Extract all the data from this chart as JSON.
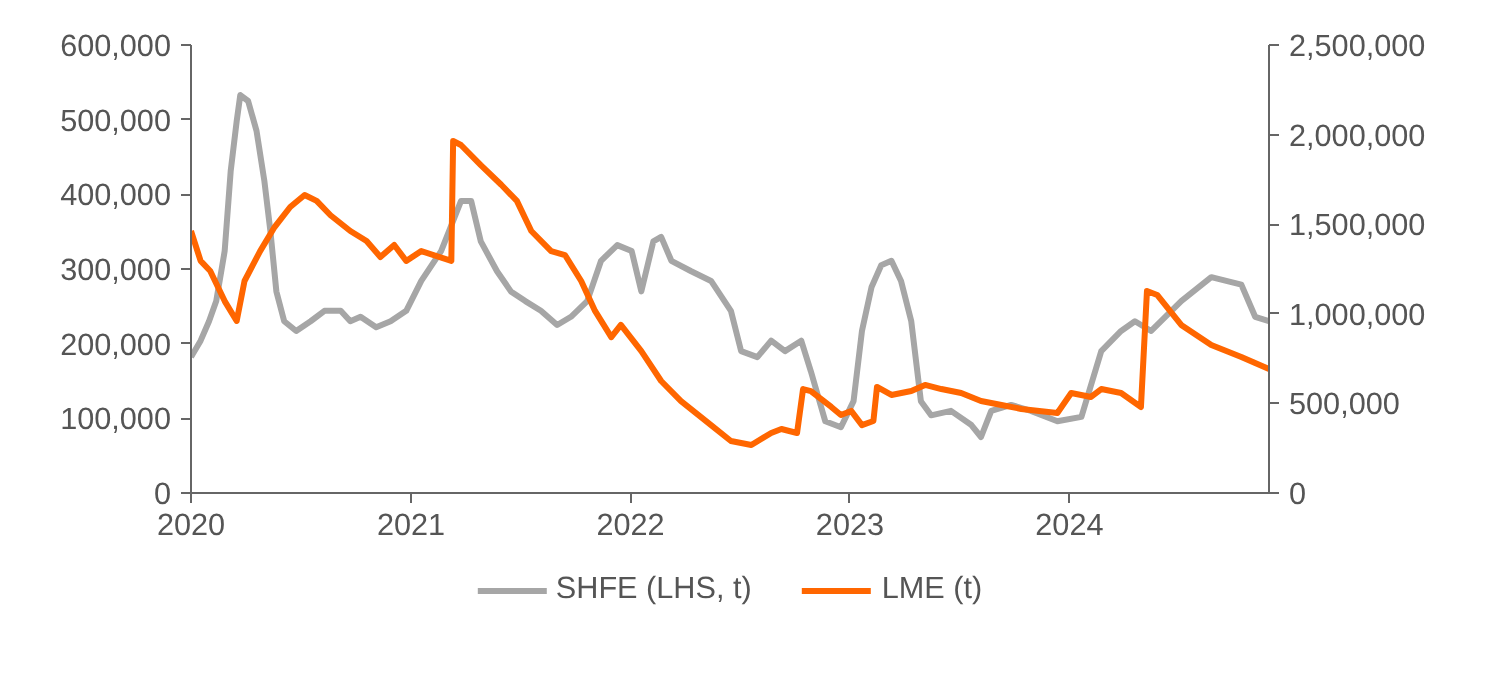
{
  "chart_data": {
    "type": "line",
    "legend": "bottom",
    "grid": false,
    "line_style": "solid",
    "xlim": [
      "2020-01-01",
      "2024-11-28"
    ],
    "xticks": [
      "2020",
      "2021",
      "2022",
      "2023",
      "2024"
    ],
    "ylim": [
      0,
      600000
    ],
    "yticks": [
      0,
      {
        "value": 100000,
        "label": "100,000"
      },
      {
        "value": 200000,
        "label": "200,000"
      },
      {
        "value": 300000,
        "label": "300,000"
      },
      {
        "value": 400000,
        "label": "400,000"
      },
      {
        "value": 500000,
        "label": "500,000"
      },
      {
        "value": 600000,
        "label": "600,000"
      }
    ],
    "y2lim": [
      0,
      2500000
    ],
    "y2ticks": [
      0,
      {
        "value": 500000,
        "label": "500,000"
      },
      {
        "value": 1000000,
        "label": "1,000,000"
      },
      {
        "value": 1500000,
        "label": "1,500,000"
      },
      {
        "value": 2000000,
        "label": "2,000,000"
      },
      {
        "value": 2500000,
        "label": "2,500,000"
      }
    ],
    "series": [
      {
        "name": "SHFE (LHS, t)",
        "color": "#a6a6a6",
        "x": [
          "2020-01-01",
          "2020-01-17",
          "2020-01-31",
          "2020-02-12",
          "2020-02-26",
          "2020-03-07",
          "2020-03-17",
          "2020-03-23",
          "2020-04-05",
          "2020-04-19",
          "2020-05-02",
          "2020-05-12",
          "2020-05-22",
          "2020-06-04",
          "2020-06-24",
          "2020-07-18",
          "2020-08-10",
          "2020-09-06",
          "2020-09-22",
          "2020-10-09",
          "2020-11-04",
          "2020-11-28",
          "2020-12-24",
          "2021-01-18",
          "2021-02-20",
          "2021-03-25",
          "2021-04-11",
          "2021-04-27",
          "2021-05-24",
          "2021-06-16",
          "2021-07-10",
          "2021-08-05",
          "2021-09-01",
          "2021-09-24",
          "2021-10-21",
          "2021-11-13",
          "2021-12-10",
          "2022-01-03",
          "2022-01-19",
          "2022-02-08",
          "2022-02-21",
          "2022-03-10",
          "2022-04-12",
          "2022-05-15",
          "2022-06-17",
          "2022-07-04",
          "2022-07-31",
          "2022-08-23",
          "2022-09-15",
          "2022-10-12",
          "2022-10-28",
          "2022-11-21",
          "2022-12-17",
          "2023-01-07",
          "2023-01-21",
          "2023-02-06",
          "2023-02-22",
          "2023-03-11",
          "2023-03-27",
          "2023-04-13",
          "2023-04-29",
          "2023-05-16",
          "2023-06-18",
          "2023-07-22",
          "2023-08-07",
          "2023-08-24",
          "2023-09-26",
          "2023-10-29",
          "2023-12-12",
          "2024-01-21",
          "2024-02-23",
          "2024-03-27",
          "2024-04-19",
          "2024-05-16",
          "2024-07-05",
          "2024-08-24",
          "2024-10-13",
          "2024-11-05",
          "2024-11-28"
        ],
        "values": [
          182000,
          204000,
          230000,
          257000,
          324000,
          431000,
          498000,
          533000,
          525000,
          485000,
          418000,
          351000,
          270000,
          230000,
          217000,
          230000,
          244000,
          244000,
          230000,
          236000,
          222000,
          230000,
          244000,
          284000,
          324000,
          391000,
          391000,
          337000,
          297000,
          270000,
          257000,
          244000,
          225000,
          236000,
          257000,
          311000,
          332000,
          324000,
          270000,
          337000,
          343000,
          311000,
          297000,
          284000,
          244000,
          190000,
          182000,
          204000,
          190000,
          204000,
          163000,
          96000,
          88000,
          123000,
          217000,
          276000,
          305000,
          311000,
          284000,
          230000,
          123000,
          104000,
          110000,
          91000,
          75000,
          110000,
          118000,
          110000,
          96000,
          102000,
          190000,
          217000,
          230000,
          217000,
          257000,
          289000,
          279000,
          236000,
          230000
        ]
      },
      {
        "name": "LME (t)",
        "color": "#ff6600",
        "axis": "y2",
        "x": [
          "2020-01-01",
          "2020-01-17",
          "2020-02-02",
          "2020-02-26",
          "2020-03-17",
          "2020-03-30",
          "2020-04-25",
          "2020-05-19",
          "2020-06-14",
          "2020-07-08",
          "2020-07-28",
          "2020-08-20",
          "2020-09-22",
          "2020-10-19",
          "2020-11-11",
          "2020-12-04",
          "2020-12-24",
          "2021-01-18",
          "2021-03-09",
          "2021-03-12",
          "2021-03-25",
          "2021-04-27",
          "2021-05-31",
          "2021-06-26",
          "2021-07-20",
          "2021-08-22",
          "2021-09-14",
          "2021-10-11",
          "2021-11-03",
          "2021-11-30",
          "2021-12-16",
          "2022-01-19",
          "2022-02-21",
          "2022-03-26",
          "2022-05-15",
          "2022-06-17",
          "2022-07-21",
          "2022-08-23",
          "2022-09-09",
          "2022-10-05",
          "2022-10-15",
          "2022-10-28",
          "2022-12-01",
          "2022-12-17",
          "2023-01-03",
          "2023-01-21",
          "2023-02-09",
          "2023-02-15",
          "2023-03-11",
          "2023-04-13",
          "2023-05-06",
          "2023-06-02",
          "2023-07-05",
          "2023-08-07",
          "2023-09-10",
          "2023-10-13",
          "2023-12-12",
          "2024-01-04",
          "2024-02-06",
          "2024-02-23",
          "2024-03-27",
          "2024-04-29",
          "2024-05-09",
          "2024-05-26",
          "2024-07-05",
          "2024-08-24",
          "2024-10-13",
          "2024-11-28"
        ],
        "values": [
          1462000,
          1295000,
          1239000,
          1071000,
          960000,
          1183000,
          1350000,
          1484000,
          1596000,
          1663000,
          1630000,
          1550000,
          1462000,
          1406000,
          1317000,
          1384000,
          1295000,
          1350000,
          1295000,
          1964000,
          1942000,
          1830000,
          1720000,
          1630000,
          1462000,
          1350000,
          1328000,
          1183000,
          1016000,
          870000,
          938000,
          792000,
          625000,
          513000,
          379000,
          290000,
          268000,
          335000,
          357000,
          335000,
          580000,
          569000,
          480000,
          435000,
          458000,
          379000,
          402000,
          592000,
          547000,
          569000,
          603000,
          580000,
          558000,
          513000,
          491000,
          469000,
          446000,
          558000,
          536000,
          580000,
          558000,
          480000,
          1127000,
          1105000,
          938000,
          826000,
          759000,
          692000
        ]
      }
    ]
  }
}
